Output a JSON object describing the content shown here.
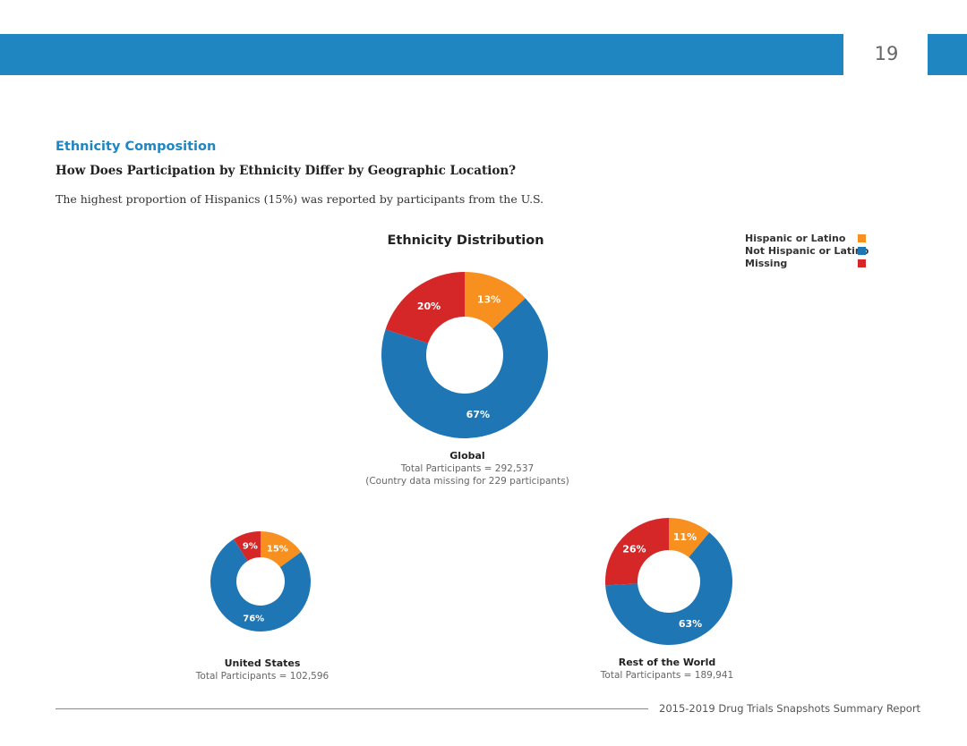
{
  "header": {
    "page_number": "19"
  },
  "section": {
    "title": "Ethnicity Composition",
    "question": "How Does Participation by Ethnicity Differ by Geographic Location?",
    "body": "The highest proportion of Hispanics (15%) was reported by participants from the U.S."
  },
  "legend": [
    {
      "label": "Hispanic or Latino",
      "color": "#f7901e"
    },
    {
      "label": "Not Hispanic or Latino",
      "color": "#1f76b4"
    },
    {
      "label": "Missing",
      "color": "#d62728"
    }
  ],
  "chart_data": {
    "type": "pie",
    "title": "Ethnicity Distribution",
    "style": "donut",
    "legend_position": "top-right",
    "categories": [
      "Hispanic or Latino",
      "Not Hispanic or Latino",
      "Missing"
    ],
    "colors": [
      "#f7901e",
      "#1f76b4",
      "#d62728"
    ],
    "charts": [
      {
        "name": "Global",
        "total_label": "Total Participants = 292,537",
        "note": "(Country data missing for 229 participants)",
        "values": [
          13,
          67,
          20
        ],
        "value_labels": [
          "13%",
          "67%",
          "20%"
        ]
      },
      {
        "name": "United States",
        "total_label": "Total Participants = 102,596",
        "note": "",
        "values": [
          15,
          76,
          9
        ],
        "value_labels": [
          "15%",
          "76%",
          "9%"
        ]
      },
      {
        "name": "Rest of the World",
        "total_label": "Total Participants = 189,941",
        "note": "",
        "values": [
          11,
          63,
          26
        ],
        "value_labels": [
          "11%",
          "63%",
          "26%"
        ]
      }
    ]
  },
  "footer": {
    "text": "2015-2019 Drug Trials Snapshots Summary Report"
  }
}
